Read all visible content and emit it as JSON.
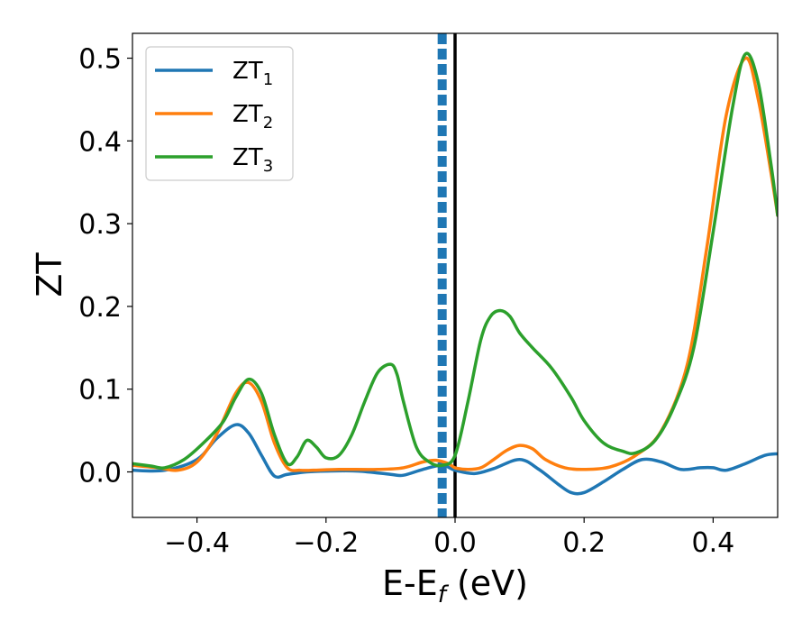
{
  "chart_data": {
    "type": "line",
    "xlabel_main": "E-E",
    "xlabel_sub": "f",
    "xlabel_unit": " (eV)",
    "ylabel": "ZT",
    "xlim": [
      -0.5,
      0.5
    ],
    "ylim": [
      -0.055,
      0.53
    ],
    "grid": false,
    "legend_position": "top-left",
    "x_ticks": [
      {
        "value": -0.4,
        "label": "−0.4"
      },
      {
        "value": -0.2,
        "label": "−0.2"
      },
      {
        "value": 0.0,
        "label": "0.0"
      },
      {
        "value": 0.2,
        "label": "0.2"
      },
      {
        "value": 0.4,
        "label": "0.4"
      }
    ],
    "y_ticks": [
      {
        "value": 0.0,
        "label": "0.0"
      },
      {
        "value": 0.1,
        "label": "0.1"
      },
      {
        "value": 0.2,
        "label": "0.2"
      },
      {
        "value": 0.3,
        "label": "0.3"
      },
      {
        "value": 0.4,
        "label": "0.4"
      },
      {
        "value": 0.5,
        "label": "0.5"
      }
    ],
    "vertical_lines": [
      {
        "x": -0.02,
        "style": "dashed",
        "color": "#1f77b4"
      },
      {
        "x": 0.0,
        "style": "solid",
        "color": "#000000"
      }
    ],
    "series": [
      {
        "name_main": "ZT",
        "name_sub": "1",
        "color": "#1f77b4",
        "x": [
          -0.5,
          -0.45,
          -0.4,
          -0.37,
          -0.34,
          -0.32,
          -0.3,
          -0.28,
          -0.26,
          -0.23,
          -0.2,
          -0.15,
          -0.1,
          -0.08,
          -0.05,
          -0.02,
          0.0,
          0.03,
          0.06,
          0.1,
          0.13,
          0.16,
          0.18,
          0.2,
          0.23,
          0.26,
          0.29,
          0.32,
          0.35,
          0.38,
          0.4,
          0.42,
          0.45,
          0.48,
          0.5
        ],
        "y": [
          0.002,
          0.002,
          0.015,
          0.04,
          0.057,
          0.047,
          0.02,
          -0.005,
          -0.003,
          0.0,
          0.001,
          0.001,
          -0.003,
          -0.004,
          0.003,
          0.008,
          0.002,
          -0.002,
          0.004,
          0.015,
          0.003,
          -0.015,
          -0.025,
          -0.025,
          -0.012,
          0.003,
          0.015,
          0.012,
          0.003,
          0.005,
          0.005,
          0.002,
          0.01,
          0.02,
          0.022
        ]
      },
      {
        "name_main": "ZT",
        "name_sub": "2",
        "color": "#ff7f0e",
        "x": [
          -0.5,
          -0.46,
          -0.43,
          -0.4,
          -0.37,
          -0.34,
          -0.32,
          -0.3,
          -0.28,
          -0.26,
          -0.24,
          -0.22,
          -0.18,
          -0.12,
          -0.08,
          -0.05,
          -0.03,
          -0.01,
          0.0,
          0.02,
          0.04,
          0.06,
          0.08,
          0.1,
          0.12,
          0.14,
          0.17,
          0.2,
          0.24,
          0.28,
          0.32,
          0.36,
          0.39,
          0.42,
          0.45,
          0.47,
          0.49,
          0.5
        ],
        "y": [
          0.008,
          0.005,
          0.002,
          0.012,
          0.045,
          0.095,
          0.108,
          0.085,
          0.035,
          0.005,
          0.002,
          0.002,
          0.003,
          0.003,
          0.005,
          0.012,
          0.014,
          0.01,
          0.005,
          0.003,
          0.005,
          0.015,
          0.026,
          0.032,
          0.028,
          0.015,
          0.005,
          0.003,
          0.006,
          0.02,
          0.05,
          0.13,
          0.27,
          0.43,
          0.5,
          0.45,
          0.36,
          0.31
        ]
      },
      {
        "name_main": "ZT",
        "name_sub": "3",
        "color": "#2ca02c",
        "x": [
          -0.5,
          -0.47,
          -0.45,
          -0.42,
          -0.39,
          -0.36,
          -0.34,
          -0.32,
          -0.3,
          -0.28,
          -0.26,
          -0.245,
          -0.23,
          -0.215,
          -0.2,
          -0.18,
          -0.16,
          -0.14,
          -0.12,
          -0.1,
          -0.09,
          -0.08,
          -0.06,
          -0.04,
          -0.02,
          0.0,
          0.02,
          0.04,
          0.055,
          0.07,
          0.085,
          0.1,
          0.12,
          0.15,
          0.18,
          0.2,
          0.23,
          0.26,
          0.28,
          0.31,
          0.34,
          0.37,
          0.4,
          0.43,
          0.45,
          0.47,
          0.49,
          0.5
        ],
        "y": [
          0.01,
          0.007,
          0.005,
          0.015,
          0.035,
          0.06,
          0.09,
          0.112,
          0.095,
          0.045,
          0.01,
          0.018,
          0.038,
          0.03,
          0.017,
          0.02,
          0.045,
          0.085,
          0.12,
          0.13,
          0.118,
          0.085,
          0.03,
          0.012,
          0.008,
          0.02,
          0.085,
          0.16,
          0.188,
          0.195,
          0.188,
          0.168,
          0.15,
          0.125,
          0.09,
          0.062,
          0.035,
          0.025,
          0.023,
          0.038,
          0.08,
          0.15,
          0.29,
          0.44,
          0.505,
          0.47,
          0.37,
          0.31
        ]
      }
    ]
  }
}
